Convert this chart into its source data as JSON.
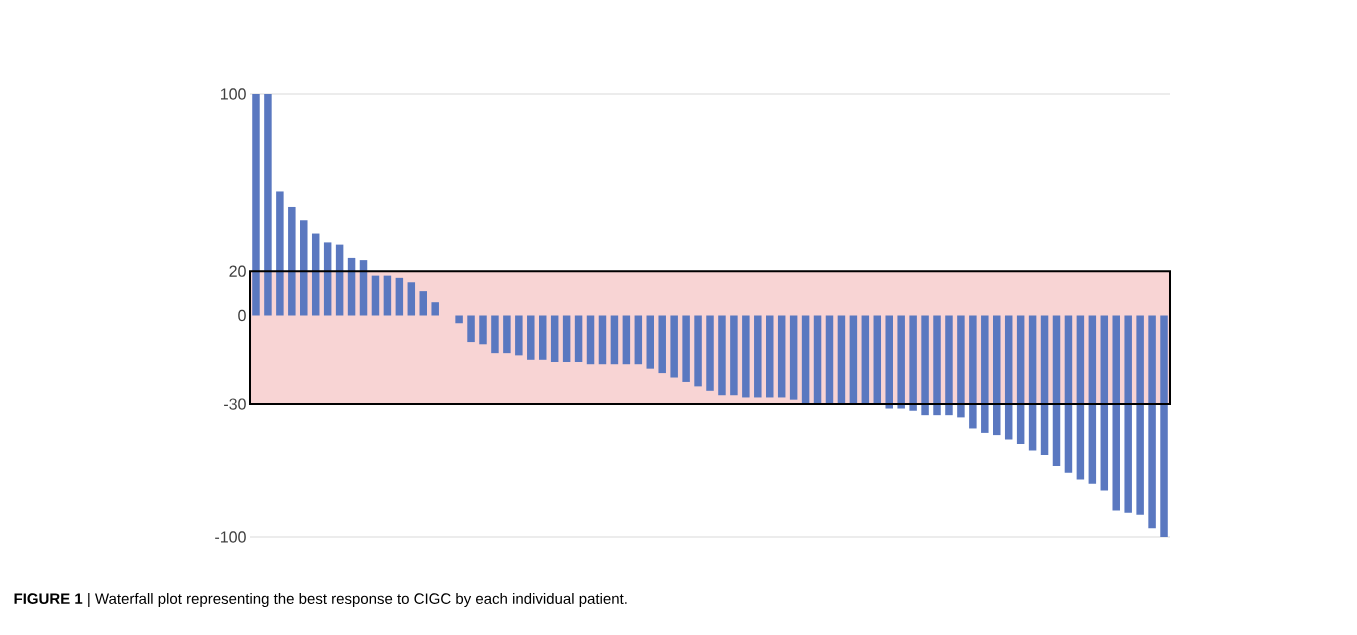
{
  "chart_data": {
    "type": "bar",
    "categories": [
      null,
      null,
      null,
      null,
      null,
      null,
      null,
      null,
      null,
      null,
      null,
      null,
      null,
      null,
      null,
      null,
      null,
      null,
      null,
      null,
      null,
      null,
      null,
      null,
      null,
      null,
      null,
      null,
      null,
      null,
      null,
      null,
      null,
      null,
      null,
      null,
      null,
      null,
      null,
      null,
      null,
      null,
      null,
      null,
      null,
      null,
      null,
      null,
      null,
      null,
      null,
      null,
      null,
      null,
      null,
      null,
      null,
      null,
      null,
      null,
      null,
      null,
      null,
      null,
      null,
      null,
      null,
      null,
      null,
      null,
      null,
      null,
      null,
      null,
      null,
      null,
      null
    ],
    "values": [
      100,
      100,
      56,
      49,
      43,
      37,
      33,
      32,
      26,
      25,
      18,
      18,
      17,
      15,
      11,
      6,
      0,
      -3.5,
      -12,
      -13,
      -17,
      -17,
      -18,
      -20,
      -20,
      -21,
      -21,
      -21,
      -22,
      -22,
      -22,
      -22,
      -22,
      -24,
      -26,
      -28,
      -30,
      -32,
      -34,
      -36,
      -36,
      -37,
      -37,
      -37,
      -37,
      -38,
      -40,
      -40,
      -40,
      -40,
      -40,
      -40,
      -40,
      -42,
      -42,
      -43,
      -45,
      -45,
      -45,
      -46,
      -51,
      -53,
      -54,
      -56,
      -58,
      -61,
      -63,
      -68,
      -71,
      -74,
      -76,
      -79,
      -88,
      -89,
      -90,
      -96,
      -100
    ],
    "color": "#5a78c0",
    "ylim": [
      -100,
      100
    ],
    "yticks": [
      100,
      20,
      0,
      -100
    ],
    "grid": "y",
    "bands": [
      {
        "axis": "y",
        "from": -40,
        "to": 20,
        "color": "#f8d4d4",
        "label": "-30"
      }
    ],
    "annotations": [
      "**FIGURE 1** | Waterfall plot representing the best response to CIGC by each individual patient."
    ]
  }
}
